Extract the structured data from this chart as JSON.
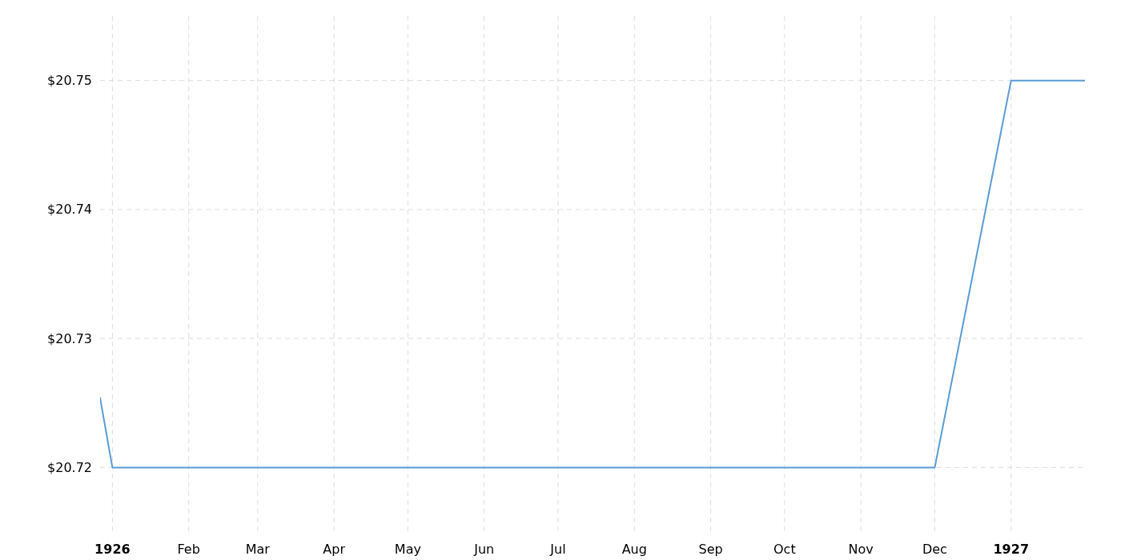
{
  "chart_data": {
    "type": "line",
    "x": [
      "1925-12-27",
      "1926-01",
      "1926-02",
      "1926-03",
      "1926-04",
      "1926-05",
      "1926-06",
      "1926-07",
      "1926-08",
      "1926-09",
      "1926-10",
      "1926-11",
      "1926-12",
      "1927-01",
      "1927-01-31"
    ],
    "series": [
      {
        "color": "#5b9bd5",
        "values": [
          20.7254,
          20.72,
          20.72,
          20.72,
          20.72,
          20.72,
          20.72,
          20.72,
          20.72,
          20.72,
          20.72,
          20.72,
          20.72,
          20.75,
          20.75
        ]
      }
    ],
    "xlim": [
      "1925-12-27",
      "1927-01-31"
    ],
    "xticks": [
      {
        "value": "1926-01",
        "label": "1926"
      },
      {
        "value": "1926-02",
        "label": "Feb"
      },
      {
        "value": "1926-03",
        "label": "Mar"
      },
      {
        "value": "1926-04",
        "label": "Apr"
      },
      {
        "value": "1926-05",
        "label": "May"
      },
      {
        "value": "1926-06",
        "label": "Jun"
      },
      {
        "value": "1926-07",
        "label": "Jul"
      },
      {
        "value": "1926-08",
        "label": "Aug"
      },
      {
        "value": "1926-09",
        "label": "Sep"
      },
      {
        "value": "1926-10",
        "label": "Oct"
      },
      {
        "value": "1926-11",
        "label": "Nov"
      },
      {
        "value": "1926-12",
        "label": "Dec"
      },
      {
        "value": "1927-01",
        "label": "1927"
      }
    ],
    "ylim": [
      20.715,
      20.755
    ],
    "yticks": [
      {
        "value": 20.72,
        "label": "$20.72"
      },
      {
        "value": 20.73,
        "label": "$20.73"
      },
      {
        "value": 20.74,
        "label": "$20.74"
      },
      {
        "value": 20.75,
        "label": "$20.75"
      }
    ],
    "grid": true,
    "marker": "none",
    "line_style": "solid"
  }
}
